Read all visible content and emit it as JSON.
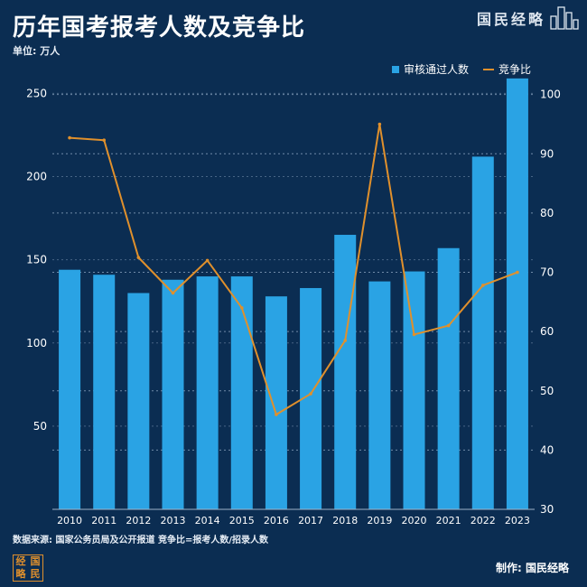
{
  "header": {
    "title": "历年国考报考人数及竞争比",
    "unit": "单位: 万人",
    "brand": "国民经略"
  },
  "footer": {
    "source": "数据来源: 国家公务员局及公开报道 竞争比=报考人数/招录人数",
    "producer": "制作: 国民经略",
    "seal_text": [
      "经",
      "国",
      "略",
      "民"
    ]
  },
  "colors": {
    "background": "#0b2d52",
    "bar": "#2aa3e4",
    "line": "#e0902c",
    "grid": "#6f8aa8"
  },
  "chart_data": {
    "type": "bar",
    "categories": [
      "2010",
      "2011",
      "2012",
      "2013",
      "2014",
      "2015",
      "2016",
      "2017",
      "2018",
      "2019",
      "2020",
      "2021",
      "2022",
      "2023"
    ],
    "series": [
      {
        "name": "审核通过人数",
        "type": "bar",
        "axis": "left",
        "values": [
          144,
          141,
          130,
          138,
          140,
          140,
          128,
          133,
          165,
          137,
          143,
          157,
          212,
          259
        ]
      },
      {
        "name": "竞争比",
        "type": "line",
        "axis": "right",
        "values": [
          92.7,
          92.3,
          72.5,
          66.5,
          72.0,
          64.0,
          46.0,
          49.5,
          58.5,
          95.0,
          59.5,
          61.0,
          67.8,
          70.0
        ]
      }
    ],
    "y_left": {
      "min": 0,
      "max": 260,
      "ticks": [
        50,
        100,
        150,
        200,
        250
      ]
    },
    "y_right": {
      "min": 30,
      "max": 103,
      "ticks": [
        30,
        40,
        50,
        60,
        70,
        80,
        90,
        100
      ]
    },
    "legend_position": "top-right",
    "grid": "horizontal dotted"
  }
}
